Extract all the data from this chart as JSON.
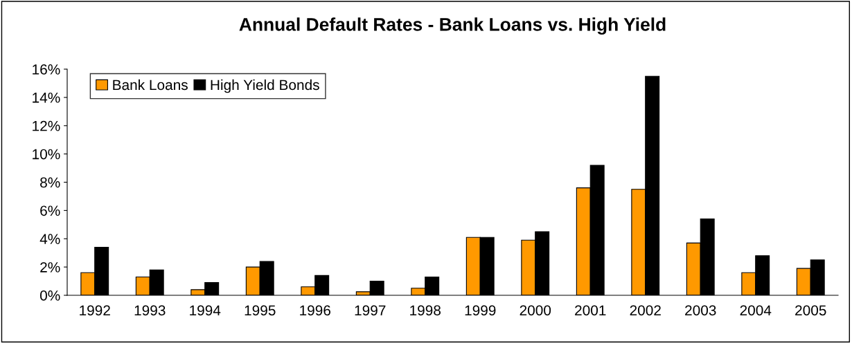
{
  "chart_data": {
    "type": "bar",
    "title": "Annual Default Rates - Bank Loans vs. High Yield",
    "categories": [
      "1992",
      "1993",
      "1994",
      "1995",
      "1996",
      "1997",
      "1998",
      "1999",
      "2000",
      "2001",
      "2002",
      "2003",
      "2004",
      "2005"
    ],
    "series": [
      {
        "name": "Bank Loans",
        "color": "#ff9900",
        "values": [
          1.6,
          1.3,
          0.4,
          2.0,
          0.6,
          0.25,
          0.5,
          4.1,
          3.9,
          7.6,
          7.5,
          3.7,
          1.6,
          1.9
        ]
      },
      {
        "name": "High Yield Bonds",
        "color": "#000000",
        "values": [
          3.4,
          1.8,
          0.9,
          2.4,
          1.4,
          1.0,
          1.3,
          4.1,
          4.5,
          9.2,
          15.5,
          5.4,
          2.8,
          2.5
        ]
      }
    ],
    "ylim": [
      0,
      16
    ],
    "yticks": [
      {
        "value": 0,
        "label": "0%"
      },
      {
        "value": 2,
        "label": "2%"
      },
      {
        "value": 4,
        "label": "4%"
      },
      {
        "value": 6,
        "label": "6%"
      },
      {
        "value": 8,
        "label": "8%"
      },
      {
        "value": 10,
        "label": "10%"
      },
      {
        "value": 12,
        "label": "12%"
      },
      {
        "value": 14,
        "label": "14%"
      },
      {
        "value": 16,
        "label": "16%"
      }
    ],
    "grid": false,
    "legend": "top left"
  }
}
